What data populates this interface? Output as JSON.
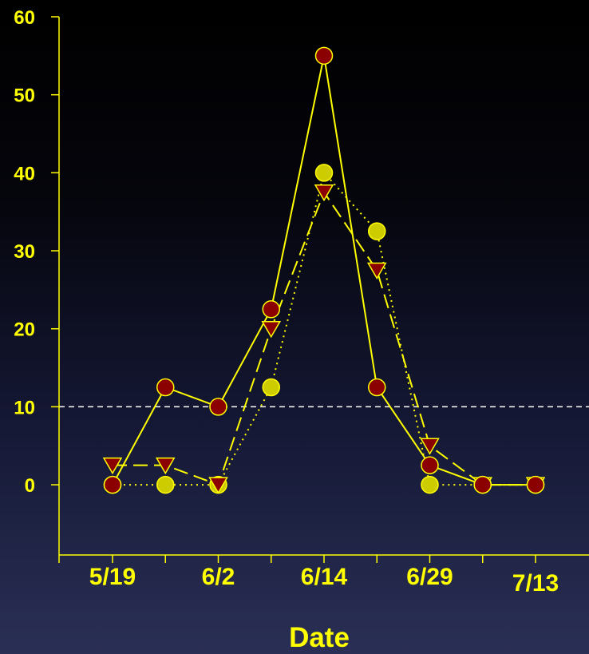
{
  "chart_data": {
    "type": "line",
    "title": "",
    "xlabel": "Date",
    "ylabel": "",
    "ylim": [
      -9,
      60
    ],
    "y_ticks": [
      0,
      10,
      20,
      30,
      40,
      50,
      60
    ],
    "x_tick_labels": [
      "5/19",
      "",
      "6/2",
      "",
      "6/14",
      "",
      "6/29",
      "",
      "7/13"
    ],
    "threshold": 10,
    "grid": false,
    "legend": "none",
    "series": [
      {
        "marker": "circle",
        "line_style": "solid",
        "marker_color": "#8b0000",
        "values": [
          0,
          12.5,
          10,
          22.5,
          55,
          12.5,
          2.5,
          0,
          0
        ]
      },
      {
        "marker": "triangle-down",
        "line_style": "dashed",
        "marker_color": "#8b0000",
        "values": [
          2.5,
          2.5,
          0,
          20,
          37.5,
          27.5,
          5,
          0,
          0
        ]
      },
      {
        "marker": "circle",
        "line_style": "dotted",
        "marker_color": "#cccc00",
        "values": [
          0,
          0,
          0,
          12.5,
          40,
          32.5,
          0,
          0,
          0
        ]
      }
    ],
    "colors": {
      "line": "#ffff00",
      "axis": "#ffff00",
      "threshold": "#ffffff",
      "text": "#ffff00"
    }
  }
}
